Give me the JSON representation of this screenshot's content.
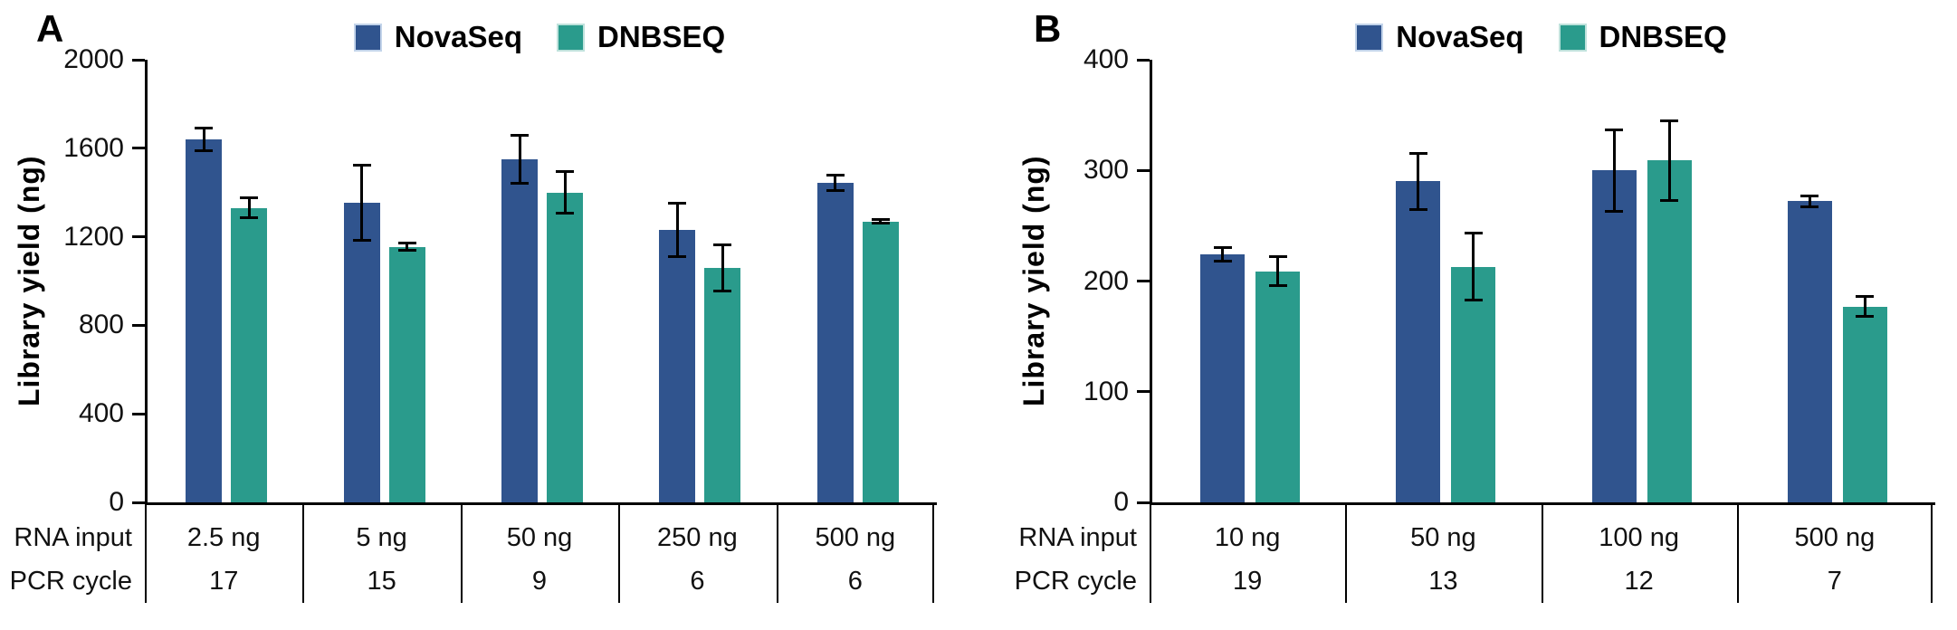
{
  "figure": {
    "panels": [
      {
        "label": "A"
      },
      {
        "label": "B"
      }
    ]
  },
  "colors": {
    "novaseq_bar": "#30548E",
    "dnbseq_bar": "#2A9B8C",
    "axis": "#000000"
  },
  "chart_data": [
    {
      "type": "bar",
      "panel": "A",
      "title": "",
      "ylabel": "Library yield (ng)",
      "ylim": [
        0,
        2000
      ],
      "yticks": [
        0,
        400,
        800,
        1200,
        1600,
        2000
      ],
      "grid": false,
      "legend_position": "top-center",
      "x_row_label": "RNA input",
      "cycle_row_label": "PCR cycle",
      "categories": [
        "2.5 ng",
        "5 ng",
        "50 ng",
        "250 ng",
        "500 ng"
      ],
      "pcr_cycles": [
        "17",
        "15",
        "9",
        "6",
        "6"
      ],
      "series": [
        {
          "name": "NovaSeq",
          "color": "#30548E",
          "values": [
            1640,
            1355,
            1550,
            1230,
            1445
          ],
          "errors": [
            50,
            170,
            110,
            120,
            35
          ]
        },
        {
          "name": "DNBSEQ",
          "color": "#2A9B8C",
          "values": [
            1330,
            1155,
            1400,
            1060,
            1270
          ],
          "errors": [
            45,
            15,
            95,
            105,
            10
          ]
        }
      ]
    },
    {
      "type": "bar",
      "panel": "B",
      "title": "",
      "ylabel": "Library yield (ng)",
      "ylim": [
        0,
        400
      ],
      "yticks": [
        0,
        100,
        200,
        300,
        400
      ],
      "grid": false,
      "legend_position": "top-center",
      "x_row_label": "RNA input",
      "cycle_row_label": "PCR cycle",
      "categories": [
        "10 ng",
        "50 ng",
        "100 ng",
        "500 ng"
      ],
      "pcr_cycles": [
        "19",
        "13",
        "12",
        "7"
      ],
      "series": [
        {
          "name": "NovaSeq",
          "color": "#30548E",
          "values": [
            224,
            290,
            300,
            272
          ],
          "errors": [
            6,
            25,
            37,
            5
          ]
        },
        {
          "name": "DNBSEQ",
          "color": "#2A9B8C",
          "values": [
            209,
            213,
            309,
            177
          ],
          "errors": [
            13,
            30,
            36,
            9
          ]
        }
      ]
    }
  ]
}
